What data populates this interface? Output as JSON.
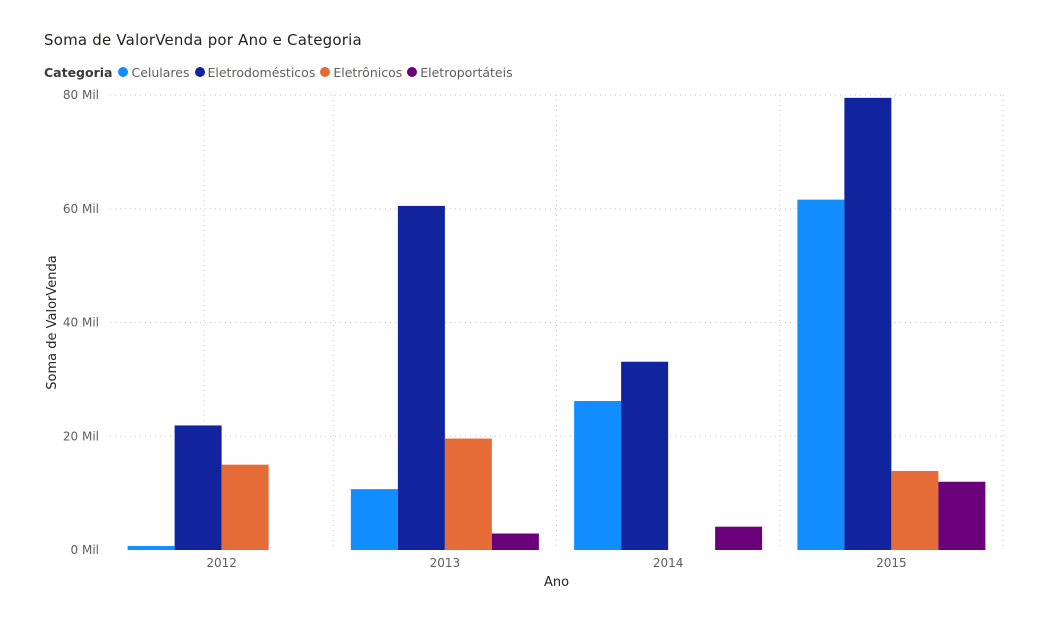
{
  "chart_data": {
    "type": "bar",
    "title": "Soma de ValorVenda por Ano e Categoria",
    "xlabel": "Ano",
    "ylabel": "Soma de ValorVenda",
    "categories": [
      "2012",
      "2013",
      "2014",
      "2015"
    ],
    "yticks": [
      {
        "value": 0,
        "label": "0 Mil"
      },
      {
        "value": 20000,
        "label": "20 Mil"
      },
      {
        "value": 40000,
        "label": "40 Mil"
      },
      {
        "value": 60000,
        "label": "60 Mil"
      },
      {
        "value": 80000,
        "label": "80 Mil"
      }
    ],
    "ylim": [
      0,
      80000
    ],
    "grid": true,
    "legend": {
      "title": "Categoria",
      "placement": "top-left"
    },
    "series": [
      {
        "name": "Celulares",
        "color": "#118DFF",
        "values": [
          700,
          10700,
          26200,
          61600
        ]
      },
      {
        "name": "Eletrodomésticos",
        "color": "#12239E",
        "values": [
          21900,
          60500,
          33100,
          79500
        ]
      },
      {
        "name": "Eletrônicos",
        "color": "#E66C37",
        "values": [
          15000,
          19600,
          null,
          13900
        ]
      },
      {
        "name": "Eletroportáteis",
        "color": "#6B007B",
        "values": [
          null,
          2900,
          4100,
          12000
        ]
      }
    ]
  }
}
